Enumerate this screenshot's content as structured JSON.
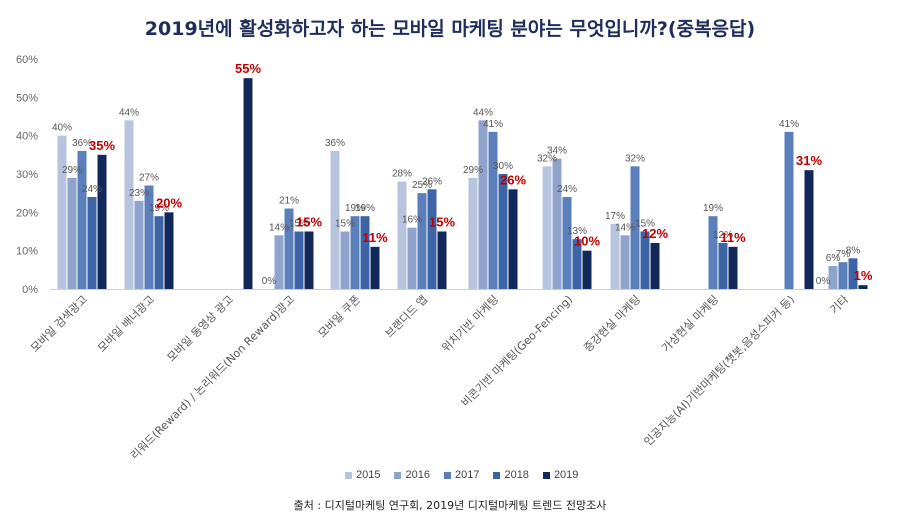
{
  "title": "2019년에 활성화하고자 하는 모바일 마케팅 분야는 무엇입니까?(중복응답)",
  "source": "출처 : 디지털마케팅 연구회, 2019년 디지털마케팅 트렌드 전망조사",
  "colors": {
    "2015": "#b7c4de",
    "2016": "#8fa3cc",
    "2017": "#5b7fba",
    "2018": "#3c64a6",
    "2019": "#13285a",
    "highlight_label": "#c00000",
    "label": "#555555"
  },
  "chart_data": {
    "type": "bar",
    "ylim": [
      0,
      60
    ],
    "y_ticks": [
      "0%",
      "10%",
      "20%",
      "30%",
      "40%",
      "50%",
      "60%"
    ],
    "categories": [
      "모바일 검색광고",
      "모바일 배너광고",
      "모바일 동영상 광고",
      "리워드(Reward) / 논리워드(Non Reward)광고",
      "모바일 쿠폰",
      "브랜디드 앱",
      "위치기반 마케팅",
      "비콘기반 마케팅(Geo-Fencing)",
      "증강현실 마케팅",
      "가상현실 마케팅",
      "인공지능(AI)기반마케팅(챗봇,음성스피커 등)",
      "기타"
    ],
    "series": [
      {
        "name": "2015",
        "values": [
          40,
          44,
          null,
          0,
          36,
          28,
          29,
          32,
          17,
          null,
          null,
          0
        ],
        "labels": [
          "40%",
          "44%",
          "",
          "0%",
          "36%",
          "28%",
          "29%",
          "32%",
          "17%",
          "",
          "",
          "0%"
        ]
      },
      {
        "name": "2016",
        "values": [
          29,
          23,
          null,
          14,
          15,
          16,
          44,
          34,
          14,
          null,
          null,
          6
        ],
        "labels": [
          "29%",
          "23%",
          "",
          "14%",
          "15%",
          "16%",
          "44%",
          "34%",
          "14%",
          "",
          "",
          "6%"
        ]
      },
      {
        "name": "2017",
        "values": [
          36,
          27,
          null,
          21,
          19,
          25,
          41,
          24,
          32,
          19,
          41,
          7
        ],
        "labels": [
          "36%",
          "27%",
          "",
          "21%",
          "19%",
          "25%",
          "41%",
          "24%",
          "32%",
          "19%",
          "41%",
          "7%"
        ]
      },
      {
        "name": "2018",
        "values": [
          24,
          19,
          null,
          15,
          19,
          26,
          30,
          13,
          15,
          12,
          null,
          8
        ],
        "labels": [
          "24%",
          "19%",
          "",
          "15%",
          "19%",
          "26%",
          "30%",
          "13%",
          "15%",
          "12%",
          "",
          "8%"
        ]
      },
      {
        "name": "2019",
        "values": [
          35,
          20,
          55,
          15,
          11,
          15,
          26,
          10,
          12,
          11,
          31,
          1
        ],
        "labels": [
          "35%",
          "20%",
          "55%",
          "15%",
          "11%",
          "15%",
          "26%",
          "10%",
          "12%",
          "11%",
          "31%",
          "1%"
        ]
      }
    ],
    "legend": [
      "2015",
      "2016",
      "2017",
      "2018",
      "2019"
    ],
    "legend_position": "bottom",
    "grid": false
  }
}
